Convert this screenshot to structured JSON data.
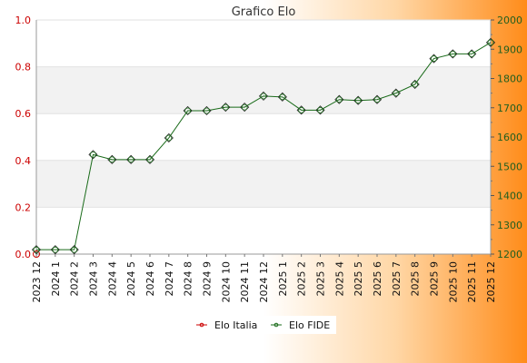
{
  "chart_data": {
    "type": "line",
    "title": "Grafico Elo",
    "categories": [
      "2023 12",
      "2024 1",
      "2024 2",
      "2024 3",
      "2024 4",
      "2024 5",
      "2024 6",
      "2024 7",
      "2024 8",
      "2024 9",
      "2024 10",
      "2024 11",
      "2024 12",
      "2025 1",
      "2025 2",
      "2025 3",
      "2025 4",
      "2025 5",
      "2025 6",
      "2025 7",
      "2025 8",
      "2025 9",
      "2025 10",
      "2025 11",
      "2025 12"
    ],
    "series": [
      {
        "name": "Elo Italia",
        "axis": "left",
        "color": "#cc0000",
        "values": [
          0,
          null,
          null,
          null,
          null,
          null,
          null,
          null,
          null,
          null,
          null,
          null,
          null,
          null,
          null,
          null,
          null,
          null,
          null,
          null,
          null,
          null,
          null,
          null,
          null
        ]
      },
      {
        "name": "Elo FIDE",
        "axis": "right",
        "color": "#1a6b1a",
        "values": [
          1215,
          1215,
          1215,
          1540,
          1523,
          1523,
          1523,
          1597,
          1690,
          1690,
          1702,
          1702,
          1740,
          1737,
          1692,
          1692,
          1728,
          1725,
          1728,
          1750,
          1780,
          1868,
          1884,
          1884,
          1923
        ]
      }
    ],
    "ylim_left": [
      0,
      1.0
    ],
    "ylim_right": [
      1200,
      2000
    ],
    "yticks_left": [
      "0.0",
      "0.2",
      "0.4",
      "0.6",
      "0.8",
      "1.0"
    ],
    "yticks_right": [
      "1200",
      "1300",
      "1400",
      "1500",
      "1600",
      "1700",
      "1800",
      "1900",
      "2000"
    ],
    "legend_position": "bottom-center",
    "grid": "horizontal bands"
  }
}
